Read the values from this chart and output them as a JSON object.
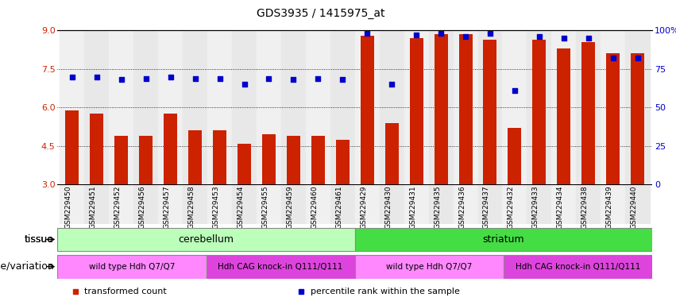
{
  "title": "GDS3935 / 1415975_at",
  "samples": [
    "GSM229450",
    "GSM229451",
    "GSM229452",
    "GSM229456",
    "GSM229457",
    "GSM229458",
    "GSM229453",
    "GSM229454",
    "GSM229455",
    "GSM229459",
    "GSM229460",
    "GSM229461",
    "GSM229429",
    "GSM229430",
    "GSM229431",
    "GSM229435",
    "GSM229436",
    "GSM229437",
    "GSM229432",
    "GSM229433",
    "GSM229434",
    "GSM229438",
    "GSM229439",
    "GSM229440"
  ],
  "transformed_count": [
    5.9,
    5.75,
    4.9,
    4.9,
    5.75,
    5.1,
    5.1,
    4.6,
    4.95,
    4.9,
    4.9,
    4.75,
    8.8,
    5.4,
    8.7,
    8.85,
    8.85,
    8.65,
    5.2,
    8.65,
    8.3,
    8.55,
    8.1,
    8.1
  ],
  "percentile_rank": [
    70,
    70,
    68,
    69,
    70,
    69,
    69,
    65,
    69,
    68,
    69,
    68,
    98,
    65,
    97,
    98,
    96,
    98,
    61,
    96,
    95,
    95,
    82,
    82
  ],
  "y_min": 3,
  "y_max": 9,
  "y_ticks": [
    3,
    4.5,
    6,
    7.5,
    9
  ],
  "y2_ticks": [
    0,
    25,
    50,
    75,
    100
  ],
  "bar_color": "#cc2200",
  "dot_color": "#0000cc",
  "tissue_groups": [
    {
      "label": "cerebellum",
      "start": 0,
      "end": 11,
      "color": "#bbffbb"
    },
    {
      "label": "striatum",
      "start": 12,
      "end": 23,
      "color": "#44dd44"
    }
  ],
  "genotype_groups": [
    {
      "label": "wild type Hdh Q7/Q7",
      "start": 0,
      "end": 5,
      "color": "#ff88ff"
    },
    {
      "label": "Hdh CAG knock-in Q111/Q111",
      "start": 6,
      "end": 11,
      "color": "#dd44dd"
    },
    {
      "label": "wild type Hdh Q7/Q7",
      "start": 12,
      "end": 17,
      "color": "#ff88ff"
    },
    {
      "label": "Hdh CAG knock-in Q111/Q111",
      "start": 18,
      "end": 23,
      "color": "#dd44dd"
    }
  ],
  "legend_items": [
    {
      "label": "transformed count",
      "color": "#cc2200"
    },
    {
      "label": "percentile rank within the sample",
      "color": "#0000cc"
    }
  ],
  "bg_color": "#ffffff",
  "col_bg_even": "#f0f0f0",
  "col_bg_odd": "#e8e8e8"
}
